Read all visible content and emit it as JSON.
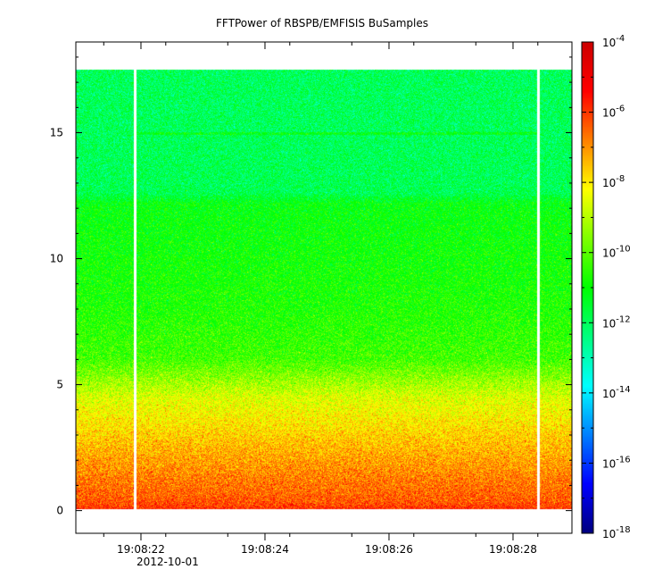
{
  "chart_data": {
    "type": "heatmap",
    "title": "FFTPower of RBSPB/EMFISIS  BuSamples",
    "xlabel": "",
    "ylabel": "",
    "ylim": [
      -0.9,
      18.6
    ],
    "y_ticks": [
      0,
      5,
      10,
      15
    ],
    "y_tick_labels": [
      "0",
      "5",
      "10",
      "15"
    ],
    "xlim_seconds": [
      20.95,
      28.95
    ],
    "x_major_seconds": [
      22,
      24,
      26,
      28
    ],
    "x_tick_labels": [
      "19:08:22",
      "19:08:24",
      "19:08:26",
      "19:08:28"
    ],
    "x_date_label": "2012-10-01",
    "x_minor_seconds": [
      21.4,
      22.4,
      23.4,
      24.4,
      25.4,
      26.4,
      27.4,
      28.4
    ],
    "data_y_range": [
      0.05,
      17.5
    ],
    "data_gaps_seconds": [
      21.9,
      28.4
    ],
    "line_feature_y": 15.0,
    "colorbar": {
      "log_min": -18,
      "log_max": -4,
      "tick_exponents": [
        -4,
        -6,
        -8,
        -10,
        -12,
        -14,
        -16,
        -18
      ],
      "tick_base": "10",
      "colors": [
        "#00007f",
        "#0000ff",
        "#007fff",
        "#00ffff",
        "#00ff7f",
        "#00ff00",
        "#7fff00",
        "#ffff00",
        "#ff7f00",
        "#ff0000",
        "#cc0000"
      ]
    },
    "profile_log_power": [
      {
        "y": 0.05,
        "v": -5.9
      },
      {
        "y": 0.4,
        "v": -6.4
      },
      {
        "y": 1.5,
        "v": -6.9
      },
      {
        "y": 3.0,
        "v": -7.7
      },
      {
        "y": 4.5,
        "v": -8.6
      },
      {
        "y": 5.2,
        "v": -9.4
      },
      {
        "y": 6.0,
        "v": -10.3
      },
      {
        "y": 8.0,
        "v": -10.7
      },
      {
        "y": 10.0,
        "v": -10.9
      },
      {
        "y": 12.2,
        "v": -11.1
      },
      {
        "y": 12.6,
        "v": -11.9
      },
      {
        "y": 15.0,
        "v": -12.0
      },
      {
        "y": 17.5,
        "v": -12.0
      }
    ]
  }
}
